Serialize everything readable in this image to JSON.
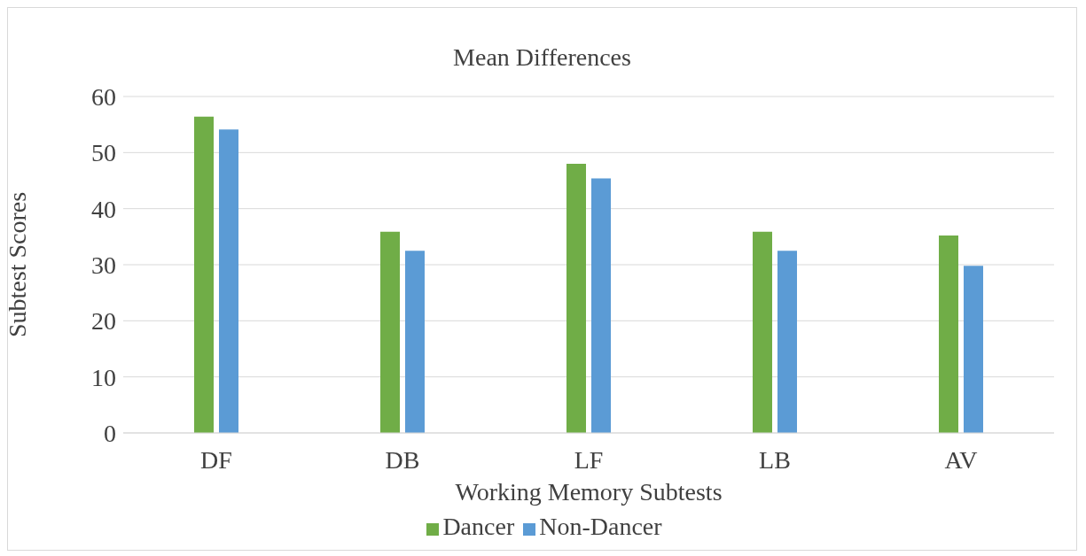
{
  "chart_data": {
    "type": "bar",
    "title": "Mean Differences",
    "xlabel": "Working Memory Subtests",
    "ylabel": "Subtest Scores",
    "categories": [
      "DF",
      "DB",
      "LF",
      "LB",
      "AV"
    ],
    "series": [
      {
        "name": "Dancer",
        "color": "#70ad47",
        "values": [
          56.4,
          35.9,
          48.0,
          35.9,
          35.2
        ]
      },
      {
        "name": "Non-Dancer",
        "color": "#5b9bd5",
        "values": [
          54.1,
          32.5,
          45.4,
          32.5,
          29.8
        ]
      }
    ],
    "ylim": [
      0,
      60
    ],
    "yticks": [
      0,
      10,
      20,
      30,
      40,
      50,
      60
    ],
    "grid": "y",
    "legend": "bottom"
  }
}
